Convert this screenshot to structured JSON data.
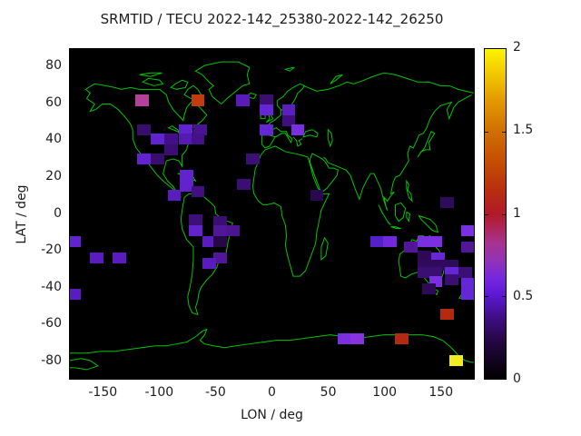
{
  "title": "SRMTID / TECU 2022-142_25380-2022-142_26250",
  "chart_data": {
    "type": "heatmap",
    "title": "SRMTID / TECU 2022-142_25380-2022-142_26250",
    "xlabel": "LON / deg",
    "ylabel": "LAT / deg",
    "xlim": [
      -180,
      180
    ],
    "ylim": [
      -90,
      90
    ],
    "xticks": [
      -150,
      -100,
      -50,
      0,
      50,
      100,
      150
    ],
    "yticks": [
      80,
      60,
      40,
      20,
      0,
      -20,
      -40,
      -60,
      -80
    ],
    "grid": false,
    "background_color": "#000000",
    "coastline_color": "#00c400",
    "cell_size_deg": {
      "lon": 12,
      "lat": 6
    },
    "colorbar": {
      "min": 0,
      "max": 2,
      "tick_values": [
        0,
        0.5,
        1,
        1.5,
        2
      ],
      "tick_labels": [
        "0",
        "0.5",
        "1",
        "1.5",
        "2"
      ],
      "gradient_stops": [
        {
          "v": 0.0,
          "c": "#000000"
        },
        {
          "v": 0.22,
          "c": "#23073f"
        },
        {
          "v": 0.35,
          "c": "#3b0d7a"
        },
        {
          "v": 0.5,
          "c": "#5a18cf"
        },
        {
          "v": 0.6,
          "c": "#7326e0"
        },
        {
          "v": 0.72,
          "c": "#9333b5"
        },
        {
          "v": 0.82,
          "c": "#a63390"
        },
        {
          "v": 0.92,
          "c": "#ad2456"
        },
        {
          "v": 1.0,
          "c": "#b01a28"
        },
        {
          "v": 1.15,
          "c": "#b92f0e"
        },
        {
          "v": 1.3,
          "c": "#c44b05"
        },
        {
          "v": 1.5,
          "c": "#d06f00"
        },
        {
          "v": 1.7,
          "c": "#e49d00"
        },
        {
          "v": 1.85,
          "c": "#f2c800"
        },
        {
          "v": 2.0,
          "c": "#fcf400"
        }
      ]
    },
    "cells": [
      {
        "lon": -116,
        "lat": 62,
        "v": 0.8,
        "c": "#b4409c"
      },
      {
        "lon": -66,
        "lat": 62,
        "v": 1.3,
        "c": "#c43c0e"
      },
      {
        "lon": -26,
        "lat": 62,
        "v": 0.5,
        "c": "#5a1cb8"
      },
      {
        "lon": -5,
        "lat": 62,
        "v": 0.3,
        "c": "#3a0f70"
      },
      {
        "lon": -5,
        "lat": 57,
        "v": 0.55,
        "c": "#6526d6"
      },
      {
        "lon": 15,
        "lat": 57,
        "v": 0.5,
        "c": "#5a1fbe"
      },
      {
        "lon": 15,
        "lat": 51,
        "v": 0.3,
        "c": "#400e80"
      },
      {
        "lon": -114,
        "lat": 46,
        "v": 0.3,
        "c": "#380e6c"
      },
      {
        "lon": -77,
        "lat": 46,
        "v": 0.55,
        "c": "#6123d0"
      },
      {
        "lon": -64,
        "lat": 46,
        "v": 0.4,
        "c": "#4a1390"
      },
      {
        "lon": -5,
        "lat": 46,
        "v": 0.55,
        "c": "#6526d6"
      },
      {
        "lon": 23,
        "lat": 46,
        "v": 0.6,
        "c": "#7a2fe0"
      },
      {
        "lon": -102,
        "lat": 41,
        "v": 0.55,
        "c": "#6123d0"
      },
      {
        "lon": -90,
        "lat": 41,
        "v": 0.38,
        "c": "#440f86"
      },
      {
        "lon": -77,
        "lat": 41,
        "v": 0.5,
        "c": "#5619b2"
      },
      {
        "lon": -66,
        "lat": 41,
        "v": 0.38,
        "c": "#45118a"
      },
      {
        "lon": -90,
        "lat": 35,
        "v": 0.3,
        "c": "#3a0e72"
      },
      {
        "lon": -114,
        "lat": 30,
        "v": 0.55,
        "c": "#6123d0"
      },
      {
        "lon": -102,
        "lat": 30,
        "v": 0.3,
        "c": "#380e6c"
      },
      {
        "lon": -17,
        "lat": 30,
        "v": 0.3,
        "c": "#3c0f76"
      },
      {
        "lon": -25,
        "lat": 16,
        "v": 0.3,
        "c": "#3a0e72"
      },
      {
        "lon": -76,
        "lat": 21,
        "v": 0.55,
        "c": "#6223cc"
      },
      {
        "lon": -76,
        "lat": 15,
        "v": 0.55,
        "c": "#6223cc"
      },
      {
        "lon": -87,
        "lat": 10,
        "v": 0.5,
        "c": "#5a1cbe"
      },
      {
        "lon": -66,
        "lat": 12,
        "v": 0.35,
        "c": "#420f80"
      },
      {
        "lon": 40,
        "lat": 10,
        "v": 0.22,
        "c": "#2a0950"
      },
      {
        "lon": 156,
        "lat": 6,
        "v": 0.25,
        "c": "#300b5c"
      },
      {
        "lon": -46,
        "lat": -4,
        "v": 0.3,
        "c": "#3a0e72"
      },
      {
        "lon": -68,
        "lat": -3,
        "v": 0.3,
        "c": "#3c1076"
      },
      {
        "lon": -68,
        "lat": -9,
        "v": 0.55,
        "c": "#6223cc"
      },
      {
        "lon": -46,
        "lat": -9,
        "v": 0.45,
        "c": "#521698"
      },
      {
        "lon": -35,
        "lat": -9,
        "v": 0.42,
        "c": "#4c1490"
      },
      {
        "lon": -56,
        "lat": -15,
        "v": 0.5,
        "c": "#5a1cbe"
      },
      {
        "lon": -46,
        "lat": -15,
        "v": 0.22,
        "c": "#260846"
      },
      {
        "lon": -46,
        "lat": -24,
        "v": 0.45,
        "c": "#521698"
      },
      {
        "lon": -56,
        "lat": -27,
        "v": 0.5,
        "c": "#5a1cbe"
      },
      {
        "lon": -176,
        "lat": -15,
        "v": 0.55,
        "c": "#6223cc"
      },
      {
        "lon": -156,
        "lat": -24,
        "v": 0.5,
        "c": "#5a1cbe"
      },
      {
        "lon": -136,
        "lat": -24,
        "v": 0.5,
        "c": "#5a1cbe"
      },
      {
        "lon": -176,
        "lat": -44,
        "v": 0.5,
        "c": "#5a1cbe"
      },
      {
        "lon": 94,
        "lat": -15,
        "v": 0.5,
        "c": "#5321c6"
      },
      {
        "lon": 105,
        "lat": -15,
        "v": 0.58,
        "c": "#7229dd"
      },
      {
        "lon": 136,
        "lat": -15,
        "v": 0.6,
        "c": "#7a2fe0"
      },
      {
        "lon": 146,
        "lat": -15,
        "v": 0.6,
        "c": "#7a2fe0"
      },
      {
        "lon": 124,
        "lat": -18,
        "v": 0.45,
        "c": "#521698"
      },
      {
        "lon": 136,
        "lat": -23,
        "v": 0.25,
        "c": "#2e0a56"
      },
      {
        "lon": 148,
        "lat": -24,
        "v": 0.55,
        "c": "#6a26d4"
      },
      {
        "lon": 175,
        "lat": -9,
        "v": 0.6,
        "c": "#7a2fe0"
      },
      {
        "lon": 175,
        "lat": -18,
        "v": 0.45,
        "c": "#521698"
      },
      {
        "lon": 136,
        "lat": -28,
        "v": 0.25,
        "c": "#300b5c"
      },
      {
        "lon": 148,
        "lat": -28,
        "v": 0.25,
        "c": "#300b5c"
      },
      {
        "lon": 160,
        "lat": -28,
        "v": 0.25,
        "c": "#300b5c"
      },
      {
        "lon": 136,
        "lat": -32,
        "v": 0.3,
        "c": "#3a0e72"
      },
      {
        "lon": 146,
        "lat": -32,
        "v": 0.3,
        "c": "#3a0e72"
      },
      {
        "lon": 160,
        "lat": -32,
        "v": 0.55,
        "c": "#6526d6"
      },
      {
        "lon": 172,
        "lat": -32,
        "v": 0.3,
        "c": "#3c0f76"
      },
      {
        "lon": 146,
        "lat": -37,
        "v": 0.6,
        "c": "#7a2fe0"
      },
      {
        "lon": 160,
        "lat": -36,
        "v": 0.3,
        "c": "#3a0e72"
      },
      {
        "lon": 175,
        "lat": -38,
        "v": 0.55,
        "c": "#6526d6"
      },
      {
        "lon": 175,
        "lat": -44,
        "v": 0.55,
        "c": "#6526d6"
      },
      {
        "lon": 140,
        "lat": -41,
        "v": 0.25,
        "c": "#2e0a56"
      },
      {
        "lon": 65,
        "lat": -68,
        "v": 0.6,
        "c": "#7a2fe0"
      },
      {
        "lon": 76,
        "lat": -68,
        "v": 0.55,
        "c": "#8832e0"
      },
      {
        "lon": 116,
        "lat": -68,
        "v": 1.3,
        "c": "#b42a10"
      },
      {
        "lon": 156,
        "lat": -55,
        "v": 1.3,
        "c": "#b42a10"
      },
      {
        "lon": 164,
        "lat": -80,
        "v": 1.95,
        "c": "#f0ee20"
      }
    ]
  }
}
